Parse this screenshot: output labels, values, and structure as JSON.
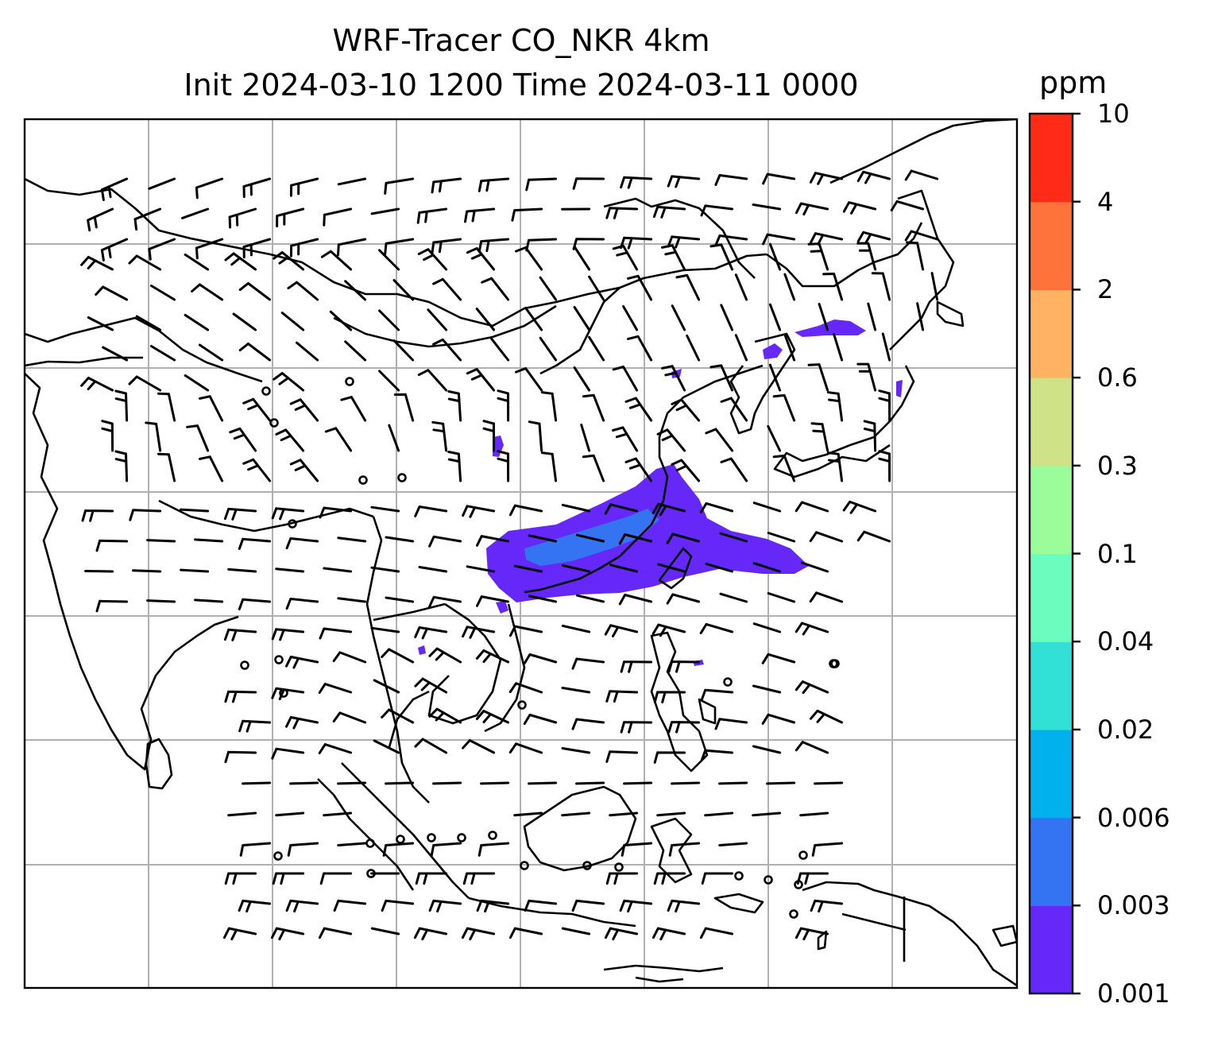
{
  "title": {
    "line1": "WRF-Tracer CO_NKR 4km",
    "line2": "Init 2024-03-10 1200 Time 2024-03-11 0000"
  },
  "colorbar": {
    "unit": "ppm",
    "levels": [
      "0.001",
      "0.003",
      "0.006",
      "0.02",
      "0.04",
      "0.1",
      "0.3",
      "0.6",
      "2",
      "4",
      "10"
    ],
    "colors": [
      "#6528f8",
      "#3474f2",
      "#00b1ee",
      "#33e0d6",
      "#6bfdbe",
      "#9bfd99",
      "#cfe287",
      "#feb262",
      "#ff7239",
      "#ff2b17"
    ]
  },
  "map": {
    "gridlines": true,
    "features": [
      "coastlines",
      "borders",
      "wind-barbs",
      "tracer-plume"
    ],
    "plume_colors": {
      "low": "#6528f8",
      "mid": "#3474f2"
    }
  }
}
